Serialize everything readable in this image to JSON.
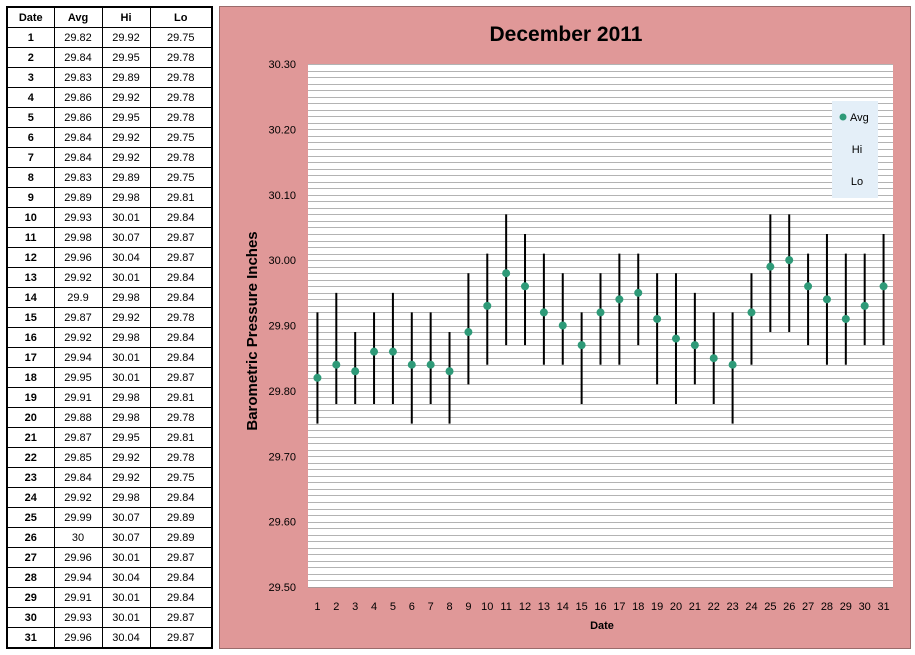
{
  "table": {
    "headers": [
      "Date",
      "Avg",
      "Hi",
      "Lo"
    ],
    "rows": [
      [
        "1",
        "29.82",
        "29.92",
        "29.75"
      ],
      [
        "2",
        "29.84",
        "29.95",
        "29.78"
      ],
      [
        "3",
        "29.83",
        "29.89",
        "29.78"
      ],
      [
        "4",
        "29.86",
        "29.92",
        "29.78"
      ],
      [
        "5",
        "29.86",
        "29.95",
        "29.78"
      ],
      [
        "6",
        "29.84",
        "29.92",
        "29.75"
      ],
      [
        "7",
        "29.84",
        "29.92",
        "29.78"
      ],
      [
        "8",
        "29.83",
        "29.89",
        "29.75"
      ],
      [
        "9",
        "29.89",
        "29.98",
        "29.81"
      ],
      [
        "10",
        "29.93",
        "30.01",
        "29.84"
      ],
      [
        "11",
        "29.98",
        "30.07",
        "29.87"
      ],
      [
        "12",
        "29.96",
        "30.04",
        "29.87"
      ],
      [
        "13",
        "29.92",
        "30.01",
        "29.84"
      ],
      [
        "14",
        "29.9",
        "29.98",
        "29.84"
      ],
      [
        "15",
        "29.87",
        "29.92",
        "29.78"
      ],
      [
        "16",
        "29.92",
        "29.98",
        "29.84"
      ],
      [
        "17",
        "29.94",
        "30.01",
        "29.84"
      ],
      [
        "18",
        "29.95",
        "30.01",
        "29.87"
      ],
      [
        "19",
        "29.91",
        "29.98",
        "29.81"
      ],
      [
        "20",
        "29.88",
        "29.98",
        "29.78"
      ],
      [
        "21",
        "29.87",
        "29.95",
        "29.81"
      ],
      [
        "22",
        "29.85",
        "29.92",
        "29.78"
      ],
      [
        "23",
        "29.84",
        "29.92",
        "29.75"
      ],
      [
        "24",
        "29.92",
        "29.98",
        "29.84"
      ],
      [
        "25",
        "29.99",
        "30.07",
        "29.89"
      ],
      [
        "26",
        "30",
        "30.07",
        "29.89"
      ],
      [
        "27",
        "29.96",
        "30.01",
        "29.87"
      ],
      [
        "28",
        "29.94",
        "30.04",
        "29.84"
      ],
      [
        "29",
        "29.91",
        "30.01",
        "29.84"
      ],
      [
        "30",
        "29.93",
        "30.01",
        "29.87"
      ],
      [
        "31",
        "29.96",
        "30.04",
        "29.87"
      ]
    ]
  },
  "colors": {
    "panel_background": "#e09898",
    "plot_background": "#ffffff",
    "gridline": "#9a9a9a",
    "avg_marker": "#2e9a78",
    "range_line": "#000000",
    "legend_background": "#e4eff8"
  },
  "chart_data": {
    "type": "scatter",
    "title": "December 2011",
    "xlabel": "Date",
    "ylabel": "Barometric Pressure Inches",
    "ylim": [
      29.5,
      30.3
    ],
    "y_ticks": [
      "29.50",
      "29.60",
      "29.70",
      "29.80",
      "29.90",
      "30.00",
      "30.10",
      "30.20",
      "30.30"
    ],
    "grid": true,
    "grid_minor_step": 0.01,
    "legend_position": "top-right",
    "categories": [
      "1",
      "2",
      "3",
      "4",
      "5",
      "6",
      "7",
      "8",
      "9",
      "10",
      "11",
      "12",
      "13",
      "14",
      "15",
      "16",
      "17",
      "18",
      "19",
      "20",
      "21",
      "22",
      "23",
      "24",
      "25",
      "26",
      "27",
      "28",
      "29",
      "30",
      "31"
    ],
    "series": [
      {
        "name": "Avg",
        "marker": "dot",
        "values": [
          29.82,
          29.84,
          29.83,
          29.86,
          29.86,
          29.84,
          29.84,
          29.83,
          29.89,
          29.93,
          29.98,
          29.96,
          29.92,
          29.9,
          29.87,
          29.92,
          29.94,
          29.95,
          29.91,
          29.88,
          29.87,
          29.85,
          29.84,
          29.92,
          29.99,
          30.0,
          29.96,
          29.94,
          29.91,
          29.93,
          29.96
        ]
      },
      {
        "name": "Hi",
        "marker": "none",
        "values": [
          29.92,
          29.95,
          29.89,
          29.92,
          29.95,
          29.92,
          29.92,
          29.89,
          29.98,
          30.01,
          30.07,
          30.04,
          30.01,
          29.98,
          29.92,
          29.98,
          30.01,
          30.01,
          29.98,
          29.98,
          29.95,
          29.92,
          29.92,
          29.98,
          30.07,
          30.07,
          30.01,
          30.04,
          30.01,
          30.01,
          30.04
        ]
      },
      {
        "name": "Lo",
        "marker": "none",
        "values": [
          29.75,
          29.78,
          29.78,
          29.78,
          29.78,
          29.75,
          29.78,
          29.75,
          29.81,
          29.84,
          29.87,
          29.87,
          29.84,
          29.84,
          29.78,
          29.84,
          29.84,
          29.87,
          29.81,
          29.78,
          29.81,
          29.78,
          29.75,
          29.84,
          29.89,
          29.89,
          29.87,
          29.84,
          29.84,
          29.87,
          29.87
        ]
      }
    ]
  }
}
